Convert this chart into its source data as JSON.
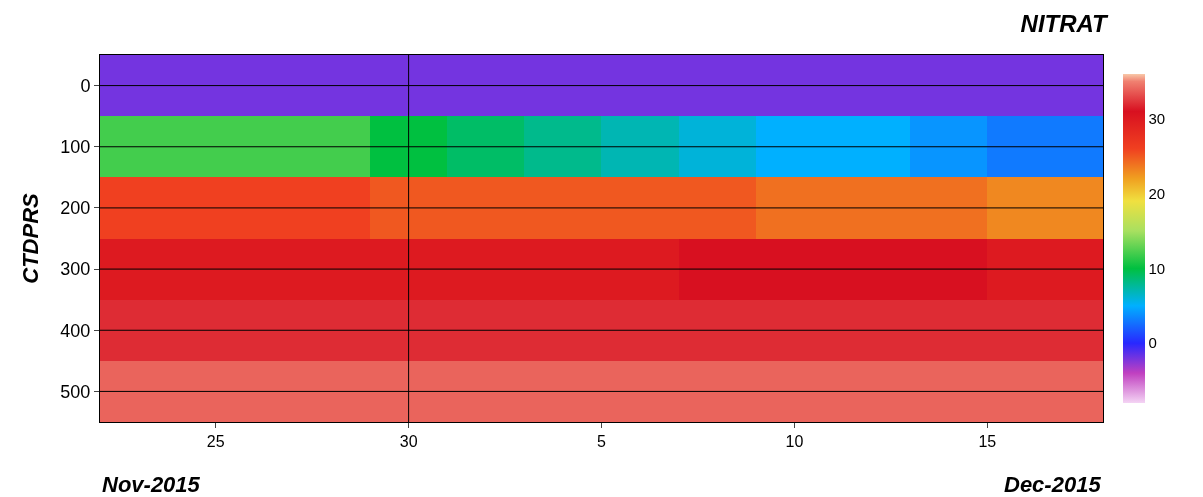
{
  "chart_data": {
    "type": "heatmap",
    "title": "NITRAT",
    "ylabel": "CTDPRS",
    "x": [
      "2015-11-22",
      "2015-11-24",
      "2015-11-26",
      "2015-11-28",
      "2015-11-30",
      "2015-12-02",
      "2015-12-04",
      "2015-12-06",
      "2015-12-08",
      "2015-12-10",
      "2015-12-12",
      "2015-12-14",
      "2015-12-16",
      "2015-12-18"
    ],
    "y_categories": [
      "0",
      "100",
      "200",
      "300",
      "400",
      "500"
    ],
    "cells": [
      [
        -2,
        -2,
        -2,
        -2,
        -2,
        -2,
        -2,
        -2,
        -2,
        -2,
        -2,
        -2,
        -2,
        -2
      ],
      [
        12,
        12,
        12,
        12,
        10,
        9,
        8,
        7,
        6,
        5,
        5,
        4,
        3,
        3
      ],
      [
        26,
        26,
        26,
        26,
        25,
        25,
        25,
        25,
        25,
        24,
        24,
        24,
        23,
        23
      ],
      [
        30,
        30,
        30,
        30,
        30,
        30,
        30,
        30,
        31,
        31,
        31,
        31,
        30,
        30
      ],
      [
        32,
        32,
        32,
        32,
        32,
        32,
        32,
        32,
        32,
        32,
        32,
        32,
        32,
        32
      ],
      [
        34,
        34,
        34,
        34,
        34,
        34,
        34,
        34,
        34,
        34,
        34,
        34,
        34,
        34
      ]
    ],
    "xlim": [
      "2015-11-22",
      "2015-12-18"
    ],
    "xticks": [
      {
        "value": "2015-11-25",
        "label": "25"
      },
      {
        "value": "2015-11-30",
        "label": "30"
      },
      {
        "value": "2015-12-05",
        "label": "5"
      },
      {
        "value": "2015-12-10",
        "label": "10"
      },
      {
        "value": "2015-12-15",
        "label": "15"
      }
    ],
    "clim": [
      -8,
      36
    ],
    "cticks": [
      0,
      10,
      20,
      30
    ],
    "grid": "y",
    "ref_lines": [
      {
        "axis": "x",
        "value": "2015-11-30",
        "color": "#000000"
      }
    ],
    "annotations": [
      "Nov-2015",
      "Dec-2015"
    ]
  }
}
